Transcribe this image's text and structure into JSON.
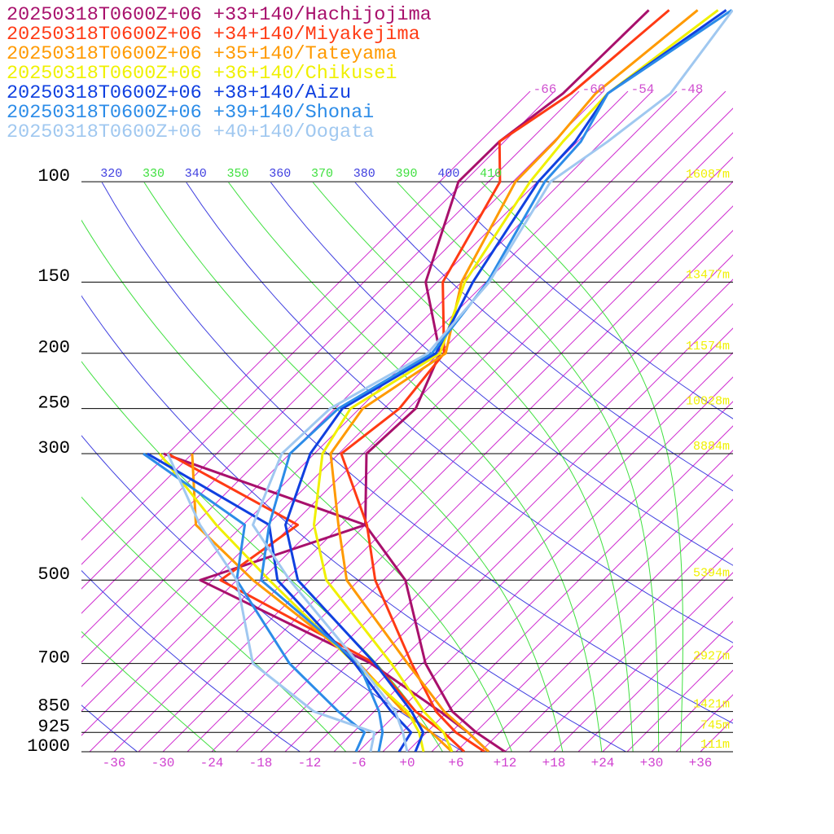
{
  "chart_data": {
    "type": "skewt",
    "log_scale": true,
    "xlim": [
      -40,
      40
    ],
    "ylim": [
      1000,
      48
    ],
    "xticks": [
      -36,
      -30,
      -24,
      -18,
      -12,
      {
        "value": -6,
        "label": "-6"
      },
      {
        "value": 0,
        "label": "+0"
      },
      {
        "value": 6,
        "label": "+6"
      },
      {
        "value": 12,
        "label": "+12"
      },
      {
        "value": 18,
        "label": "+18"
      },
      {
        "value": 24,
        "label": "+24"
      },
      {
        "value": 30,
        "label": "+30"
      },
      {
        "value": 36,
        "label": "+36"
      }
    ],
    "yticks": [
      100,
      150,
      200,
      250,
      300,
      500,
      700,
      850,
      925,
      1000
    ],
    "height_labels": [
      "16087m",
      "13477m",
      "11574m",
      "10028m",
      "8884m",
      "5394m",
      "2927m",
      "1421m",
      "745m",
      "111m"
    ],
    "isotherms": [
      -66,
      -63,
      -60,
      -57,
      -54,
      -51,
      -48,
      -45,
      -42,
      -39,
      -36,
      -33,
      -30,
      -27,
      -24,
      -21,
      -18,
      -15,
      -12,
      -9,
      -6,
      -3,
      0,
      3,
      6,
      9,
      12,
      15,
      18,
      21,
      24,
      27,
      30,
      33,
      36
    ],
    "isotherm_labels": [
      -66,
      -60,
      -54,
      -48
    ],
    "dry_adiabats": {
      "unlabeled": [
        240,
        260,
        280,
        300
      ],
      "labeled": [
        320,
        340,
        360,
        380,
        400
      ]
    },
    "moist_adiabats": {
      "unlabeled": [
        250,
        270,
        290,
        310
      ],
      "labeled": [
        330,
        350,
        370,
        390,
        410
      ]
    },
    "levels": [
      1000,
      925,
      850,
      700,
      500,
      400,
      300,
      250,
      200,
      150,
      100,
      85,
      70,
      50
    ],
    "dewpoint_levels": [
      1000,
      925,
      850,
      700,
      500,
      400,
      300
    ],
    "series": [
      {
        "name": "20250318T0600Z+06 +33+140/Hachijojima",
        "color": "#a8106c",
        "values": [
          12,
          6.1,
          0.6,
          -8.6,
          -21.3,
          -33.0,
          -41.6,
          -41.1,
          -44.9,
          -55.4,
          -63.7,
          -63.6,
          -61.7,
          -61.4
        ],
        "dewpoint": [
          10,
          5.1,
          -0.9,
          -15.3,
          -46.5,
          -33.0,
          -66.5
        ]
      },
      {
        "name": "20250318T0600Z+06 +34+140/Miyakejima",
        "color": "#ff3a14",
        "values": [
          9.5,
          3.6,
          -1.4,
          -10.3,
          -25,
          -32.8,
          -44.7,
          -43.1,
          -44.4,
          -53.3,
          -58.6,
          -63.6,
          -60.7,
          -58.9
        ],
        "dewpoint": [
          7,
          2.1,
          -3.9,
          -14.8,
          -44,
          -41.3,
          -66
        ]
      },
      {
        "name": "20250318T0600Z+06 +35+140/Tateyama",
        "color": "#ff9a00",
        "values": [
          10,
          5.1,
          -0.4,
          -10.8,
          -28.5,
          -36.3,
          -46,
          -47.6,
          -44.2,
          -51,
          -56.7,
          -56.8,
          -57.7,
          -55.4
        ],
        "dewpoint": [
          5.5,
          0.6,
          -5.4,
          -16.8,
          -40,
          -53.8,
          -63
        ]
      },
      {
        "name": "20250318T0600Z+06 +36+140/Chikusei",
        "color": "#f0f000",
        "values": [
          5.5,
          2.1,
          -2.9,
          -12.8,
          -31,
          -39.3,
          -47,
          -49.1,
          -44.9,
          -50.6,
          -54.9,
          -55.8,
          -56.2,
          -52.9
        ],
        "dewpoint": [
          2,
          -0.9,
          -4.9,
          -17.3,
          -38,
          -51.3,
          -67
        ]
      },
      {
        "name": "20250318T0600Z+06 +38+140/Aizu",
        "color": "#1040e0",
        "values": [
          1,
          -0.4,
          -4.4,
          -14.8,
          -34.5,
          -42.8,
          -48.5,
          -50.1,
          -45.4,
          -49.6,
          -53.9,
          -54.3,
          -56.2,
          -51.9
        ],
        "dewpoint": [
          -1,
          -1.9,
          -6.9,
          -17.3,
          -37,
          -44.8,
          -68.5
        ]
      },
      {
        "name": "20250318T0600Z+06 +39+140/Shonai",
        "color": "#2c8ce8",
        "values": [
          -3.5,
          -5.4,
          -8.4,
          -16.8,
          -39,
          -44.8,
          -51,
          -50.6,
          -45.9,
          -47.8,
          -53.1,
          -53.6,
          -56.2,
          -51.2
        ],
        "dewpoint": [
          -6.3,
          -7.6,
          -13.4,
          -25.3,
          -42,
          -47.8,
          -69
        ]
      },
      {
        "name": "20250318T0600Z+06 +40+140/Oogata",
        "color": "#a0c8f0",
        "values": [
          0,
          -2.9,
          -6.4,
          -16.8,
          -35.5,
          -46.8,
          -52,
          -51.6,
          -46.4,
          -47.6,
          -52.4,
          -50.3,
          -48.5,
          -51.1
        ],
        "dewpoint": [
          -4.5,
          -6.4,
          -16.4,
          -29.8,
          -42,
          -53.3,
          -66
        ]
      }
    ]
  }
}
